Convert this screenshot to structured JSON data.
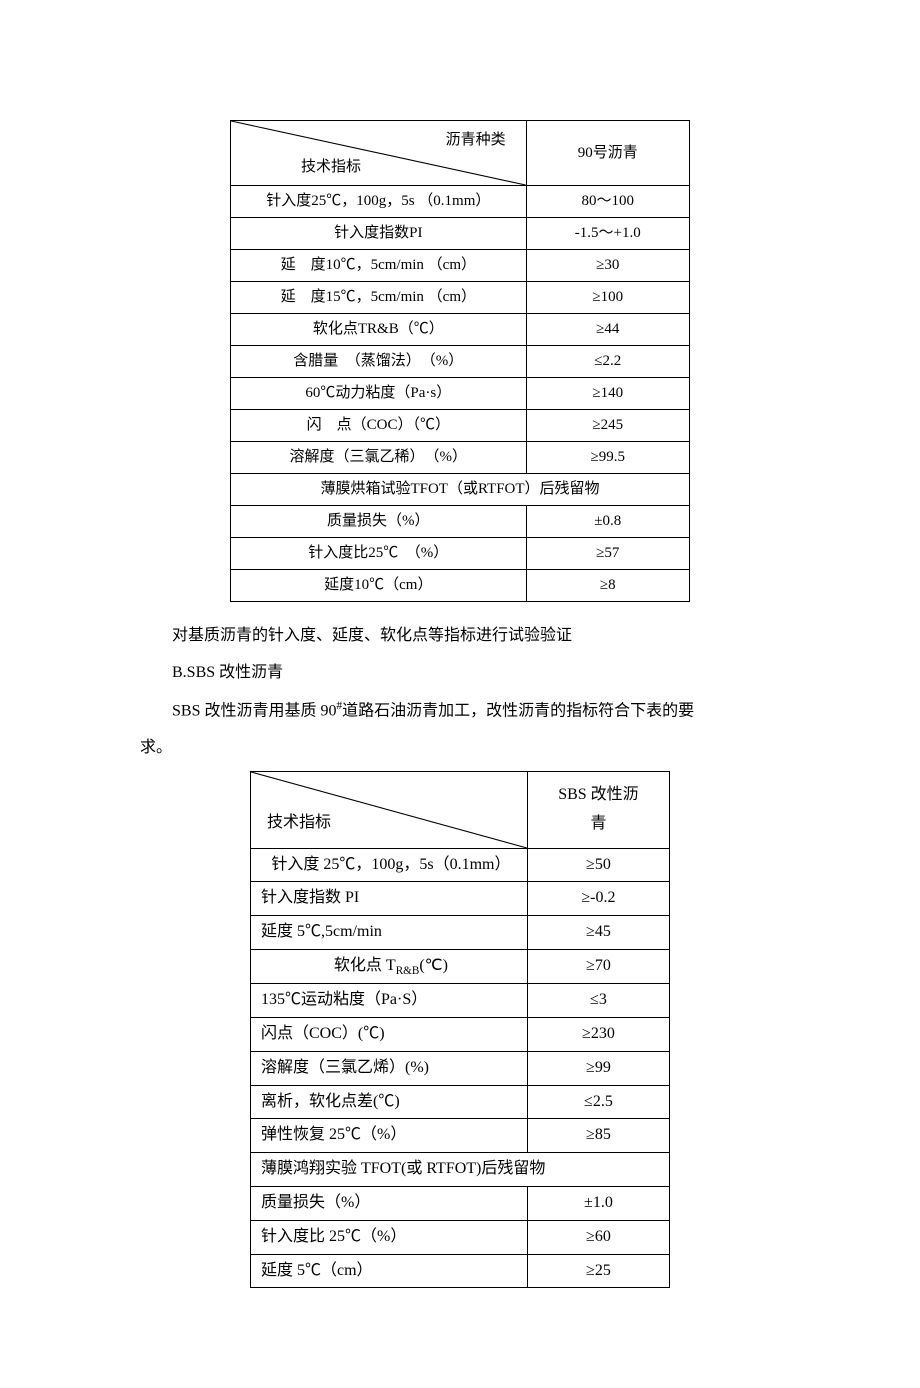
{
  "table1": {
    "header_top": "沥青种类",
    "header_bottom": "技术指标",
    "col2_header": "90号沥青",
    "rows": [
      {
        "label": "针入度25℃，100g，5s （0.1mm）",
        "value": "80～100"
      },
      {
        "label": "针入度指数PI",
        "value": "-1.5～+1.0"
      },
      {
        "label": "延　度10℃，5cm/min （cm）",
        "value": "≥30"
      },
      {
        "label": "延　度15℃，5cm/min （cm）",
        "value": "≥100"
      },
      {
        "label": "软化点TR&B（℃）",
        "value": "≥44"
      },
      {
        "label": "含腊量　（蒸馏法）　（%）",
        "value": "≤2.2"
      },
      {
        "label": "60℃动力粘度（Pa·s）",
        "value": "≥140"
      },
      {
        "label": "闪　点（COC）（℃）",
        "value": "≥245"
      },
      {
        "label": "溶解度（三氯乙稀）　（%）",
        "value": "≥99.5"
      }
    ],
    "section_title": "薄膜烘箱试验TFOT（或RTFOT）后残留物",
    "rows2": [
      {
        "label": "质量损失（%）",
        "value": "±0.8"
      },
      {
        "label": "针入度比25℃　（%）",
        "value": "≥57"
      },
      {
        "label": "延度10℃（cm）",
        "value": "≥8"
      }
    ]
  },
  "text": {
    "p1": "对基质沥青的针入度、延度、软化点等指标进行试验验证",
    "p2": "B.SBS 改性沥青",
    "p3a": "SBS 改性沥青用基质 90",
    "p3sup": "#",
    "p3b": "道路石油沥青加工，改性沥青的指标符合下表的要",
    "p4": "求。"
  },
  "table2": {
    "header_bottom": "技术指标",
    "col2_header_a": "SBS 改性沥",
    "col2_header_b": "青",
    "rows": [
      {
        "label": "针入度 25℃，100g，5s（0.1mm）",
        "value": "≥50",
        "center": true
      },
      {
        "label": "针入度指数 PI",
        "value": "≥-0.2"
      },
      {
        "label": "延度 5℃,5cm/min",
        "value": "≥45"
      },
      {
        "label_html": true,
        "label": "软化点 T",
        "sub": "R&B",
        "tail": "(℃)",
        "value": "≥70",
        "center": true
      },
      {
        "label": "135℃运动粘度（Pa·S）",
        "value": "≤3"
      },
      {
        "label": "闪点（COC）(℃)",
        "value": "≥230"
      },
      {
        "label": "溶解度（三氯乙烯）(%)",
        "value": "≥99"
      },
      {
        "label": "离析，软化点差(℃)",
        "value": "≤2.5"
      },
      {
        "label": "弹性恢复 25℃（%）",
        "value": "≥85"
      }
    ],
    "section_title": "薄膜鸿翔实验 TFOT(或 RTFOT)后残留物",
    "rows2": [
      {
        "label": "质量损失（%）",
        "value": "±1.0"
      },
      {
        "label": "针入度比 25℃（%）",
        "value": "≥60"
      },
      {
        "label": "延度 5℃（cm）",
        "value": "≥25"
      }
    ]
  }
}
